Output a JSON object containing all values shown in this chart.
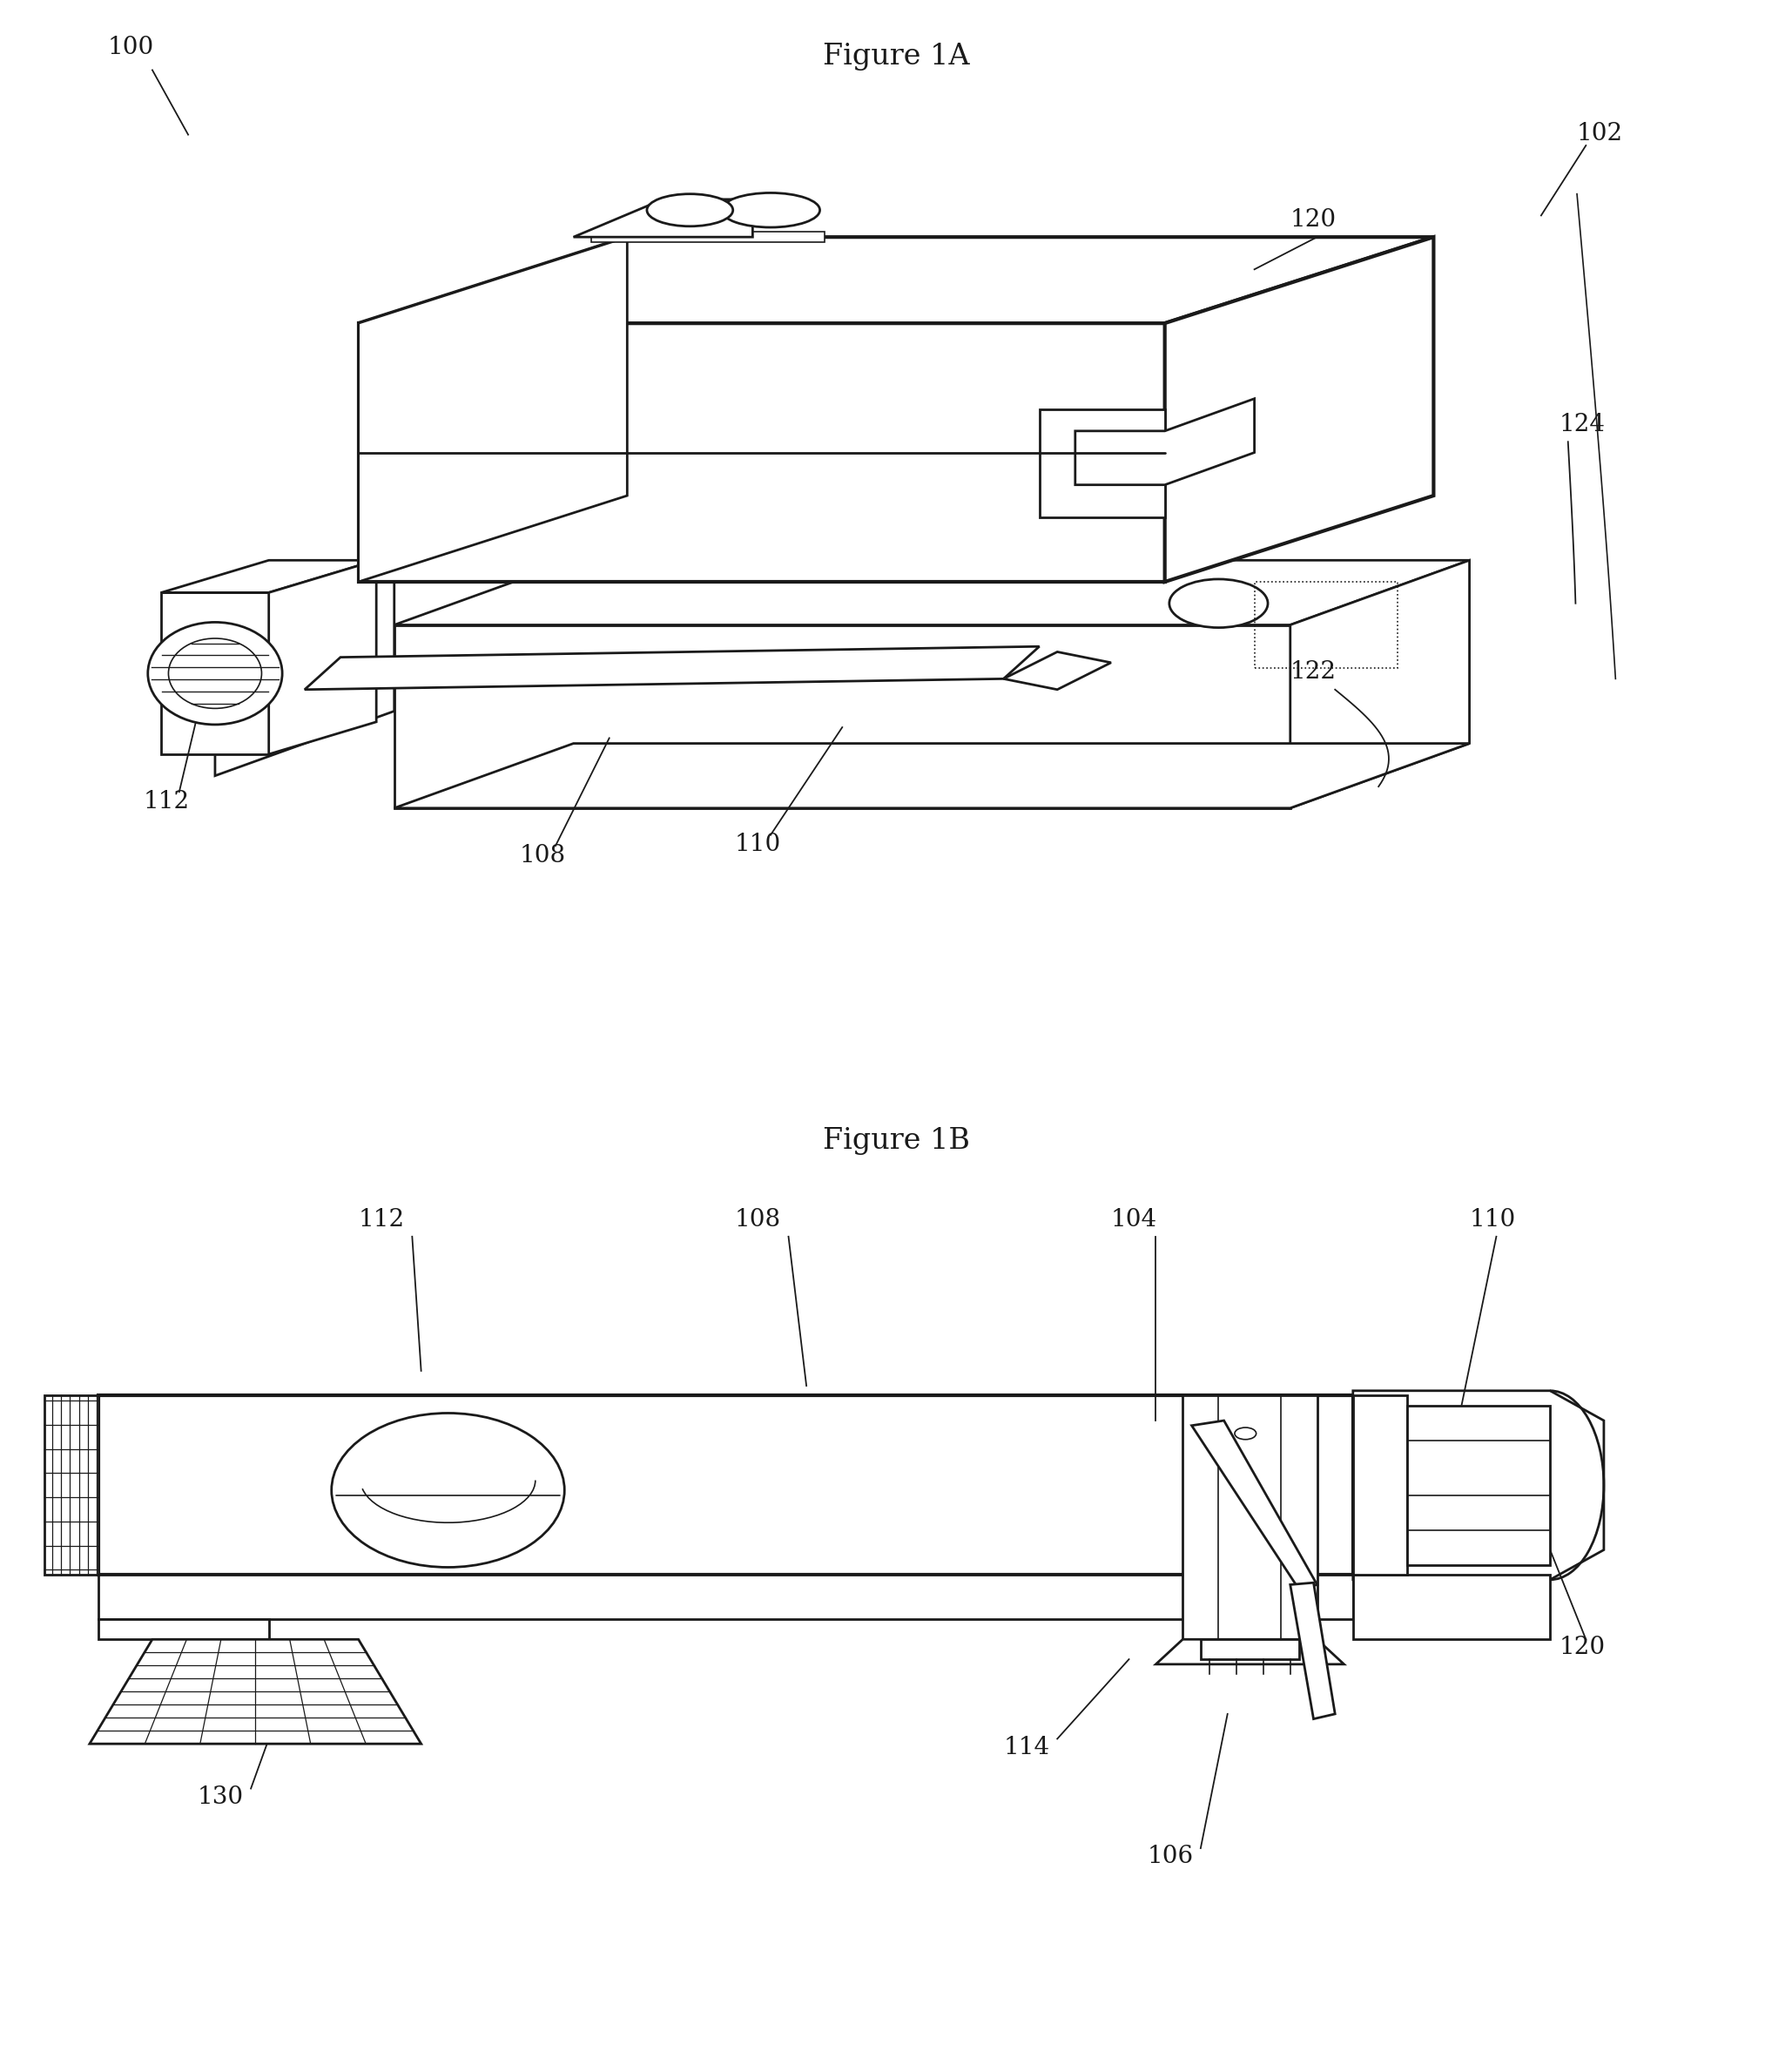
{
  "fig_title_1": "Figure 1A",
  "fig_title_2": "Figure 1B",
  "bg_color": "#ffffff",
  "lc": "#1a1a1a",
  "lw_thin": 1.2,
  "lw_med": 2.0,
  "lw_thick": 3.0,
  "fs_label": 20,
  "fs_title": 24
}
